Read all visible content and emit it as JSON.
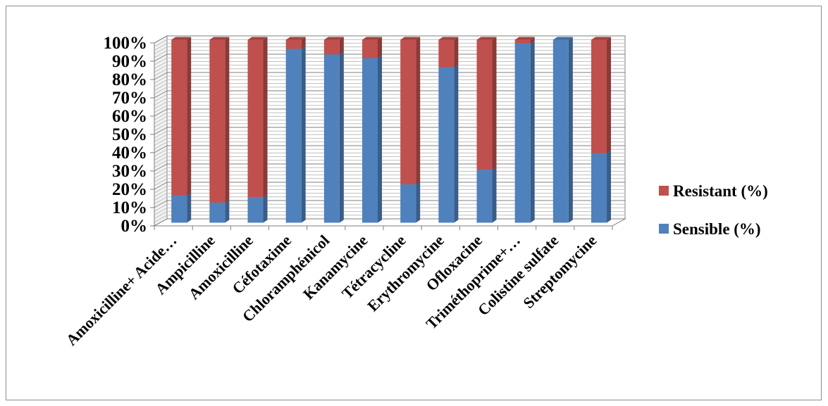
{
  "chart_data": {
    "type": "bar",
    "stacked": true,
    "three_d": true,
    "title": "",
    "xlabel": "",
    "ylabel": "",
    "ylim": [
      0,
      100
    ],
    "y_ticks": [
      "0%",
      "10%",
      "20%",
      "30%",
      "40%",
      "50%",
      "60%",
      "70%",
      "80%",
      "90%",
      "100%"
    ],
    "grid": true,
    "legend": "right",
    "categories": [
      "Amoxicilline+ Acide…",
      "Ampicilline",
      "Amoxicilline",
      "Céfotaxime",
      "Chloramphénicol",
      "Kanamycine",
      "Tétracycline",
      "Erythromycine",
      "Ofloxacine",
      "Triméthoprime+…",
      "Colistine sulfate",
      "Streptomycine"
    ],
    "series": [
      {
        "name": "Sensible (%)",
        "color": "#4f81bd",
        "values": [
          15,
          11,
          14,
          95,
          92,
          90,
          21,
          85,
          29,
          98,
          100,
          38
        ]
      },
      {
        "name": "Resistant  (%)",
        "color": "#c0504d",
        "values": [
          85,
          89,
          86,
          5,
          8,
          10,
          79,
          15,
          71,
          2,
          0,
          62
        ]
      }
    ],
    "legend_entries": [
      {
        "label": "Resistant  (%)",
        "color": "#c0504d"
      },
      {
        "label": "Sensible (%)",
        "color": "#4f81bd"
      }
    ]
  }
}
